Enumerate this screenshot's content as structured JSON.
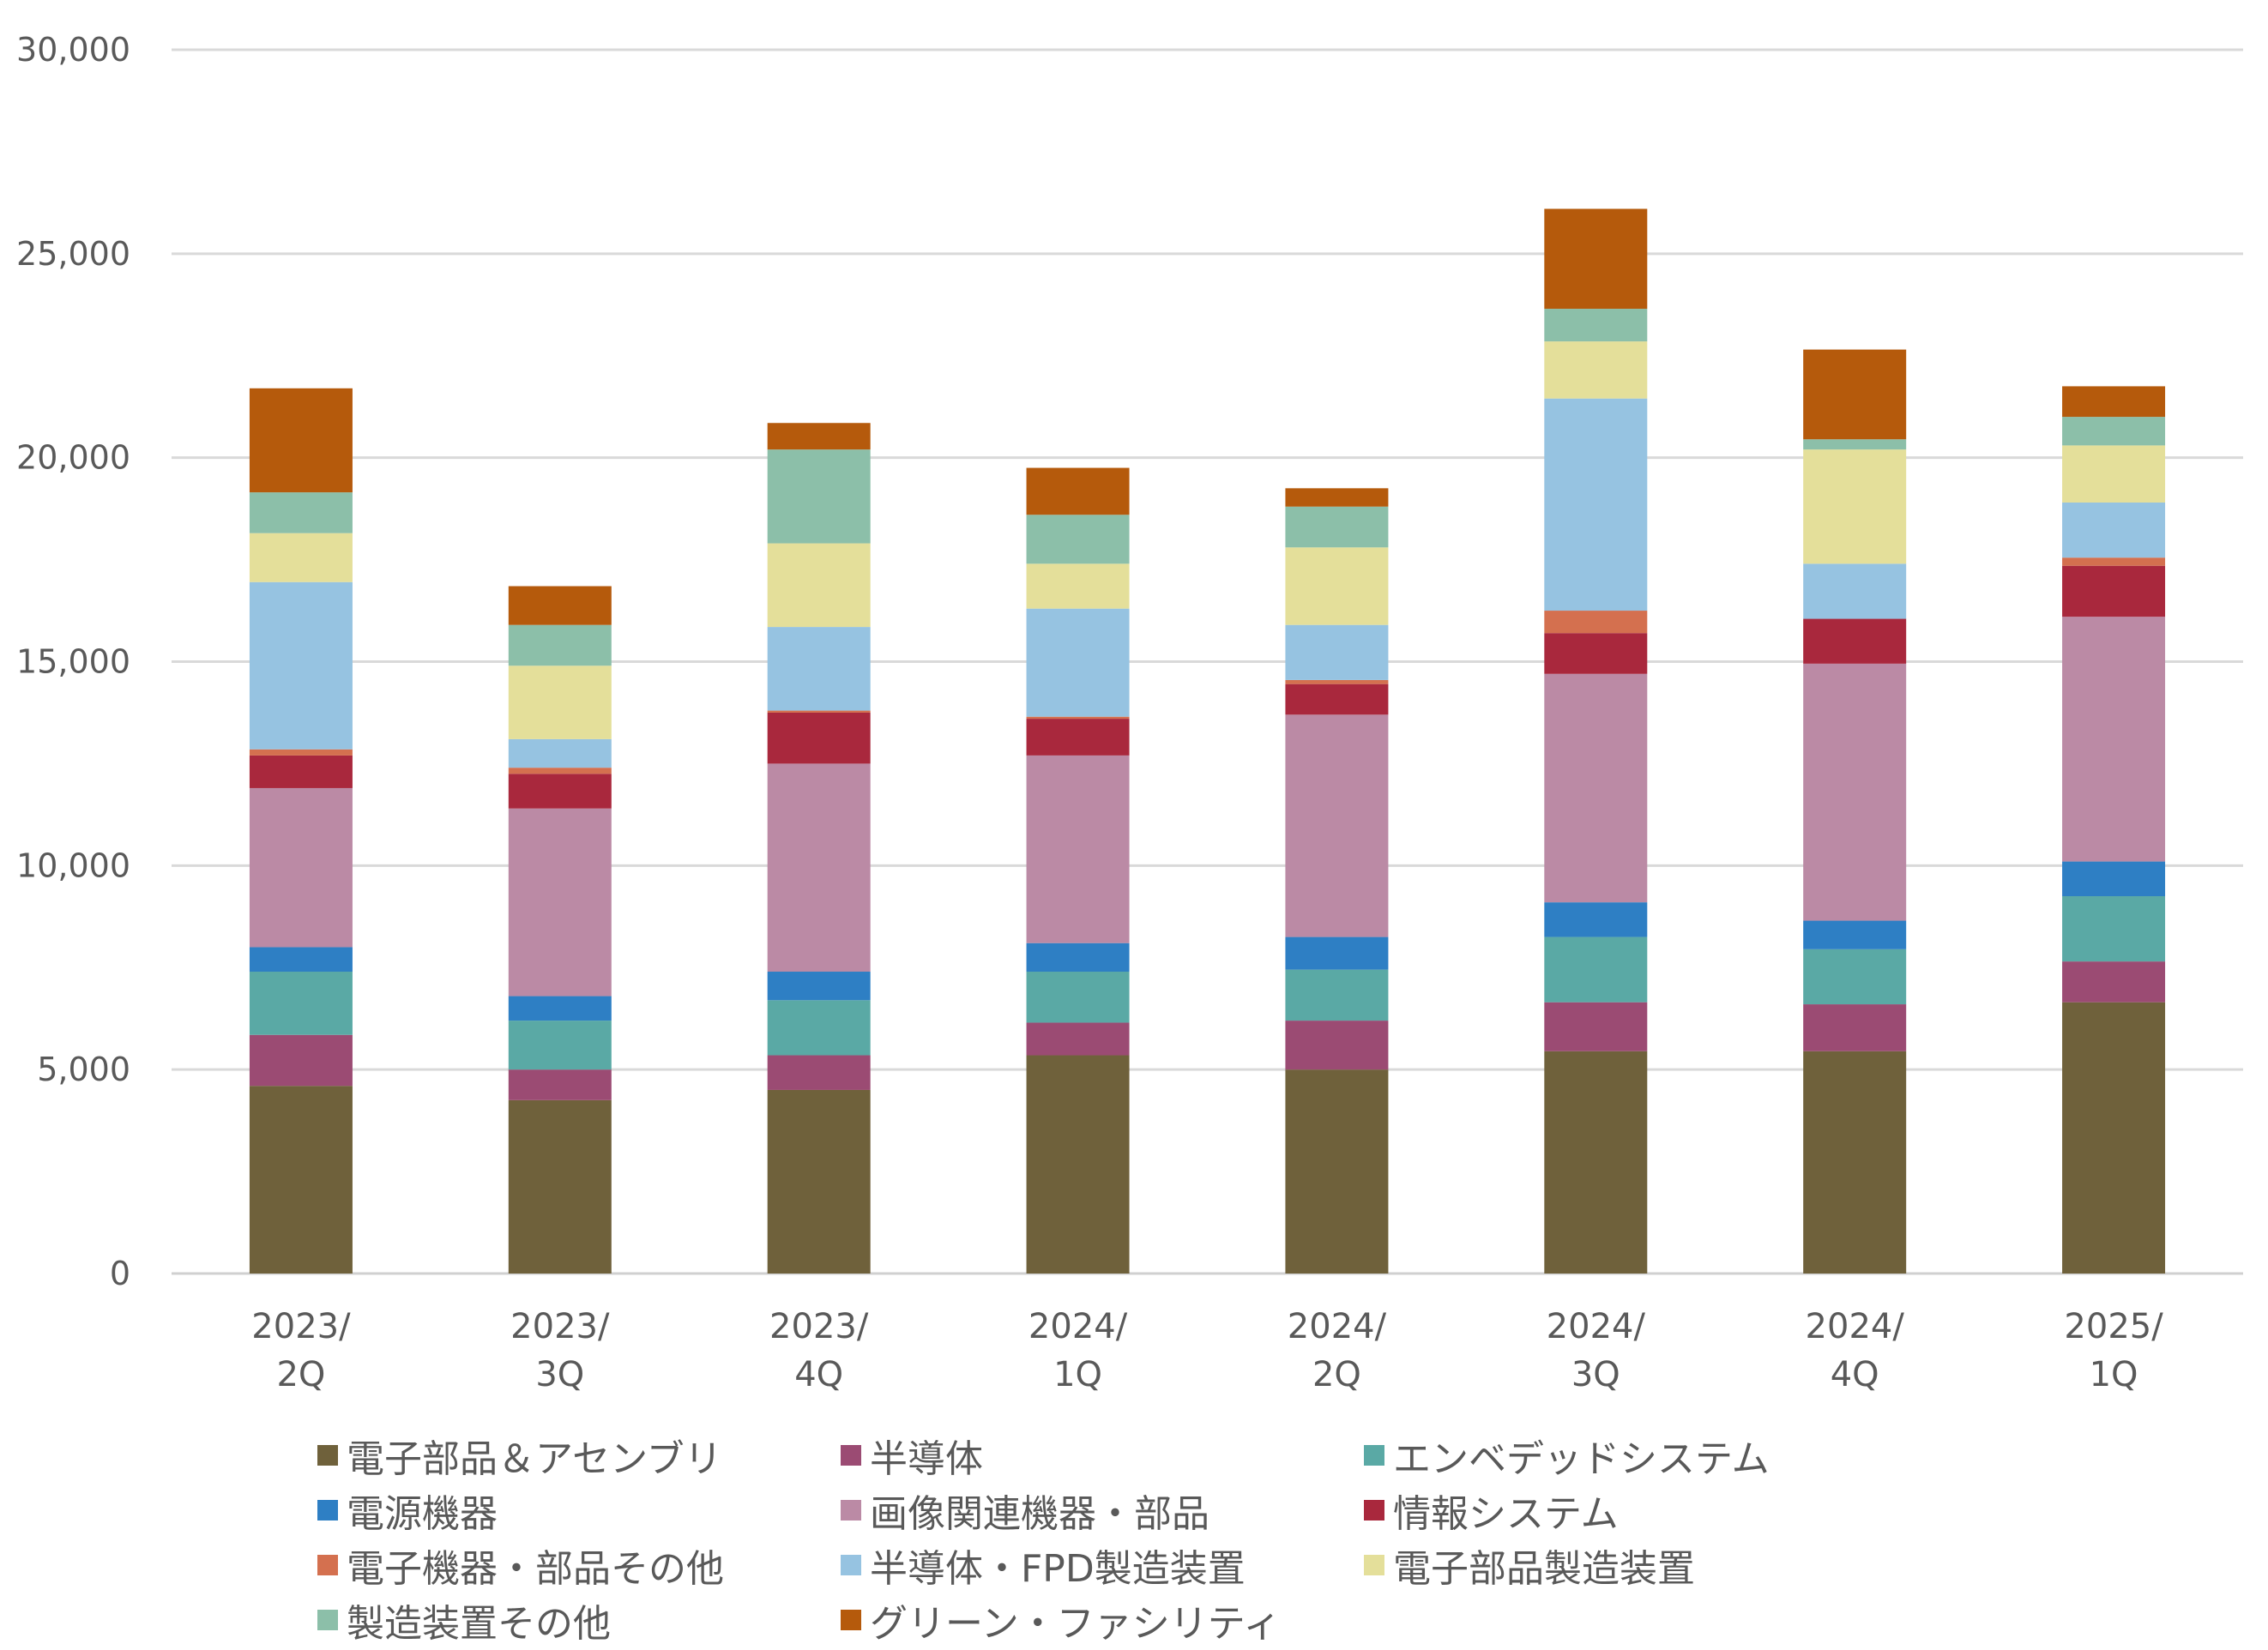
{
  "chart_data": {
    "type": "bar",
    "stacked": true,
    "categories": [
      "2023/\n2Q",
      "2023/\n3Q",
      "2023/\n4Q",
      "2024/\n1Q",
      "2024/\n2Q",
      "2024/\n3Q",
      "2024/\n4Q",
      "2025/\n1Q"
    ],
    "ylim": [
      0,
      30000
    ],
    "yticks": [
      0,
      5000,
      10000,
      15000,
      20000,
      25000,
      30000
    ],
    "ytick_labels": [
      "0",
      "5,000",
      "10,000",
      "15,000",
      "20,000",
      "25,000",
      "30,000"
    ],
    "grid": true,
    "legend_position": "bottom",
    "series": [
      {
        "name": "電子部品＆アセンブリ",
        "color": "#6f613b",
        "values": [
          4600,
          4250,
          4500,
          5350,
          5000,
          5450,
          5450,
          6650
        ]
      },
      {
        "name": "半導体",
        "color": "#9b4b73",
        "values": [
          1250,
          750,
          850,
          800,
          1200,
          1200,
          1150,
          1000
        ]
      },
      {
        "name": "エンベデッドシステム",
        "color": "#5aa9a5",
        "values": [
          1550,
          1200,
          1350,
          1250,
          1250,
          1600,
          1350,
          1600
        ]
      },
      {
        "name": "電源機器",
        "color": "#2e7fc4",
        "values": [
          600,
          600,
          700,
          700,
          800,
          850,
          700,
          850
        ]
      },
      {
        "name": "画像関連機器・部品",
        "color": "#bb8aa5",
        "values": [
          3900,
          4600,
          5100,
          4600,
          5450,
          5600,
          6300,
          6000
        ]
      },
      {
        "name": "情報システム",
        "color": "#a9283d",
        "values": [
          800,
          850,
          1250,
          900,
          750,
          1000,
          1100,
          1250
        ]
      },
      {
        "name": "電子機器・部品その他",
        "color": "#d4704f",
        "values": [
          150,
          150,
          50,
          50,
          100,
          550,
          0,
          200
        ]
      },
      {
        "name": "半導体・FPD製造装置",
        "color": "#96c3e1",
        "values": [
          4100,
          700,
          2050,
          2650,
          1350,
          5200,
          1350,
          1350
        ]
      },
      {
        "name": "電子部品製造装置",
        "color": "#e4df9a",
        "values": [
          1200,
          1800,
          2050,
          1100,
          1900,
          1400,
          2800,
          1400
        ]
      },
      {
        "name": "製造装置その他",
        "color": "#8cbfa9",
        "values": [
          1000,
          1000,
          2300,
          1200,
          1000,
          800,
          250,
          700
        ]
      },
      {
        "name": "グリーン・ファシリティ",
        "color": "#b55a0c",
        "values": [
          2550,
          950,
          650,
          1150,
          450,
          2450,
          2200,
          750
        ]
      }
    ]
  }
}
